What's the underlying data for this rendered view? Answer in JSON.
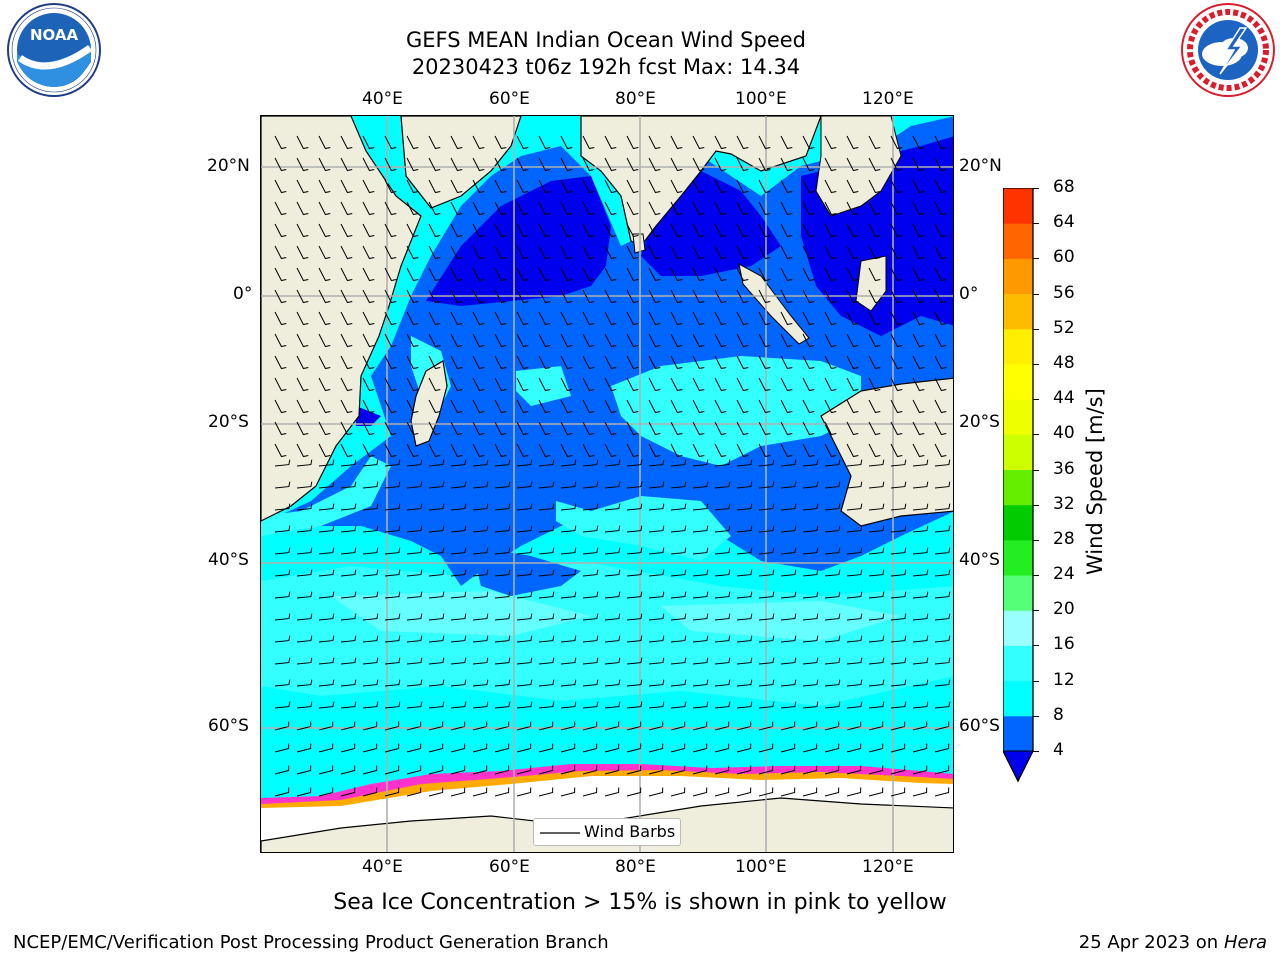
{
  "title": {
    "line1": "GEFS MEAN Indian Ocean Wind Speed",
    "line2": "20230423 t06z 192h fcst   Max: 14.34"
  },
  "logos": {
    "left": {
      "name": "NOAA",
      "ring_text": "NATIONAL OCEANIC AND ATMOSPHERIC ADMINISTRATION · U.S. DEPARTMENT OF COMMERCE"
    },
    "right": {
      "name": "NATIONAL WEATHER SERVICE"
    }
  },
  "map": {
    "lon_ticks": [
      "40°E",
      "60°E",
      "80°E",
      "100°E",
      "120°E"
    ],
    "lat_ticks": [
      "20°N",
      "0°",
      "20°S",
      "40°S",
      "60°S"
    ],
    "legend_label": "Wind Barbs"
  },
  "colorbar": {
    "label": "Wind Speed [m/s]",
    "ticks": [
      "4",
      "8",
      "12",
      "16",
      "20",
      "24",
      "28",
      "32",
      "36",
      "40",
      "44",
      "48",
      "52",
      "56",
      "60",
      "64",
      "68"
    ],
    "colors": [
      "#0066ff",
      "#00ffff",
      "#33ffff",
      "#99ffff",
      "#55ff77",
      "#22ee22",
      "#00cc00",
      "#66ee00",
      "#ccff00",
      "#eeff00",
      "#ffff00",
      "#ffee00",
      "#ffbb00",
      "#ff9900",
      "#ff6600",
      "#ff3300",
      "#ff0000"
    ],
    "under_color": "#0000ee"
  },
  "colors": {
    "land": "#efeedd",
    "ice": "#ffffff",
    "ice_edge": [
      "#ff33cc",
      "#ffaa00",
      "#ffff66"
    ]
  },
  "subtitle": "Sea Ice Concentration > 15% is shown in pink to yellow",
  "footer": {
    "left": "NCEP/EMC/Verification Post Processing Product Generation Branch",
    "right_prefix": "25 Apr 2023 on ",
    "right_host": "Hera"
  }
}
